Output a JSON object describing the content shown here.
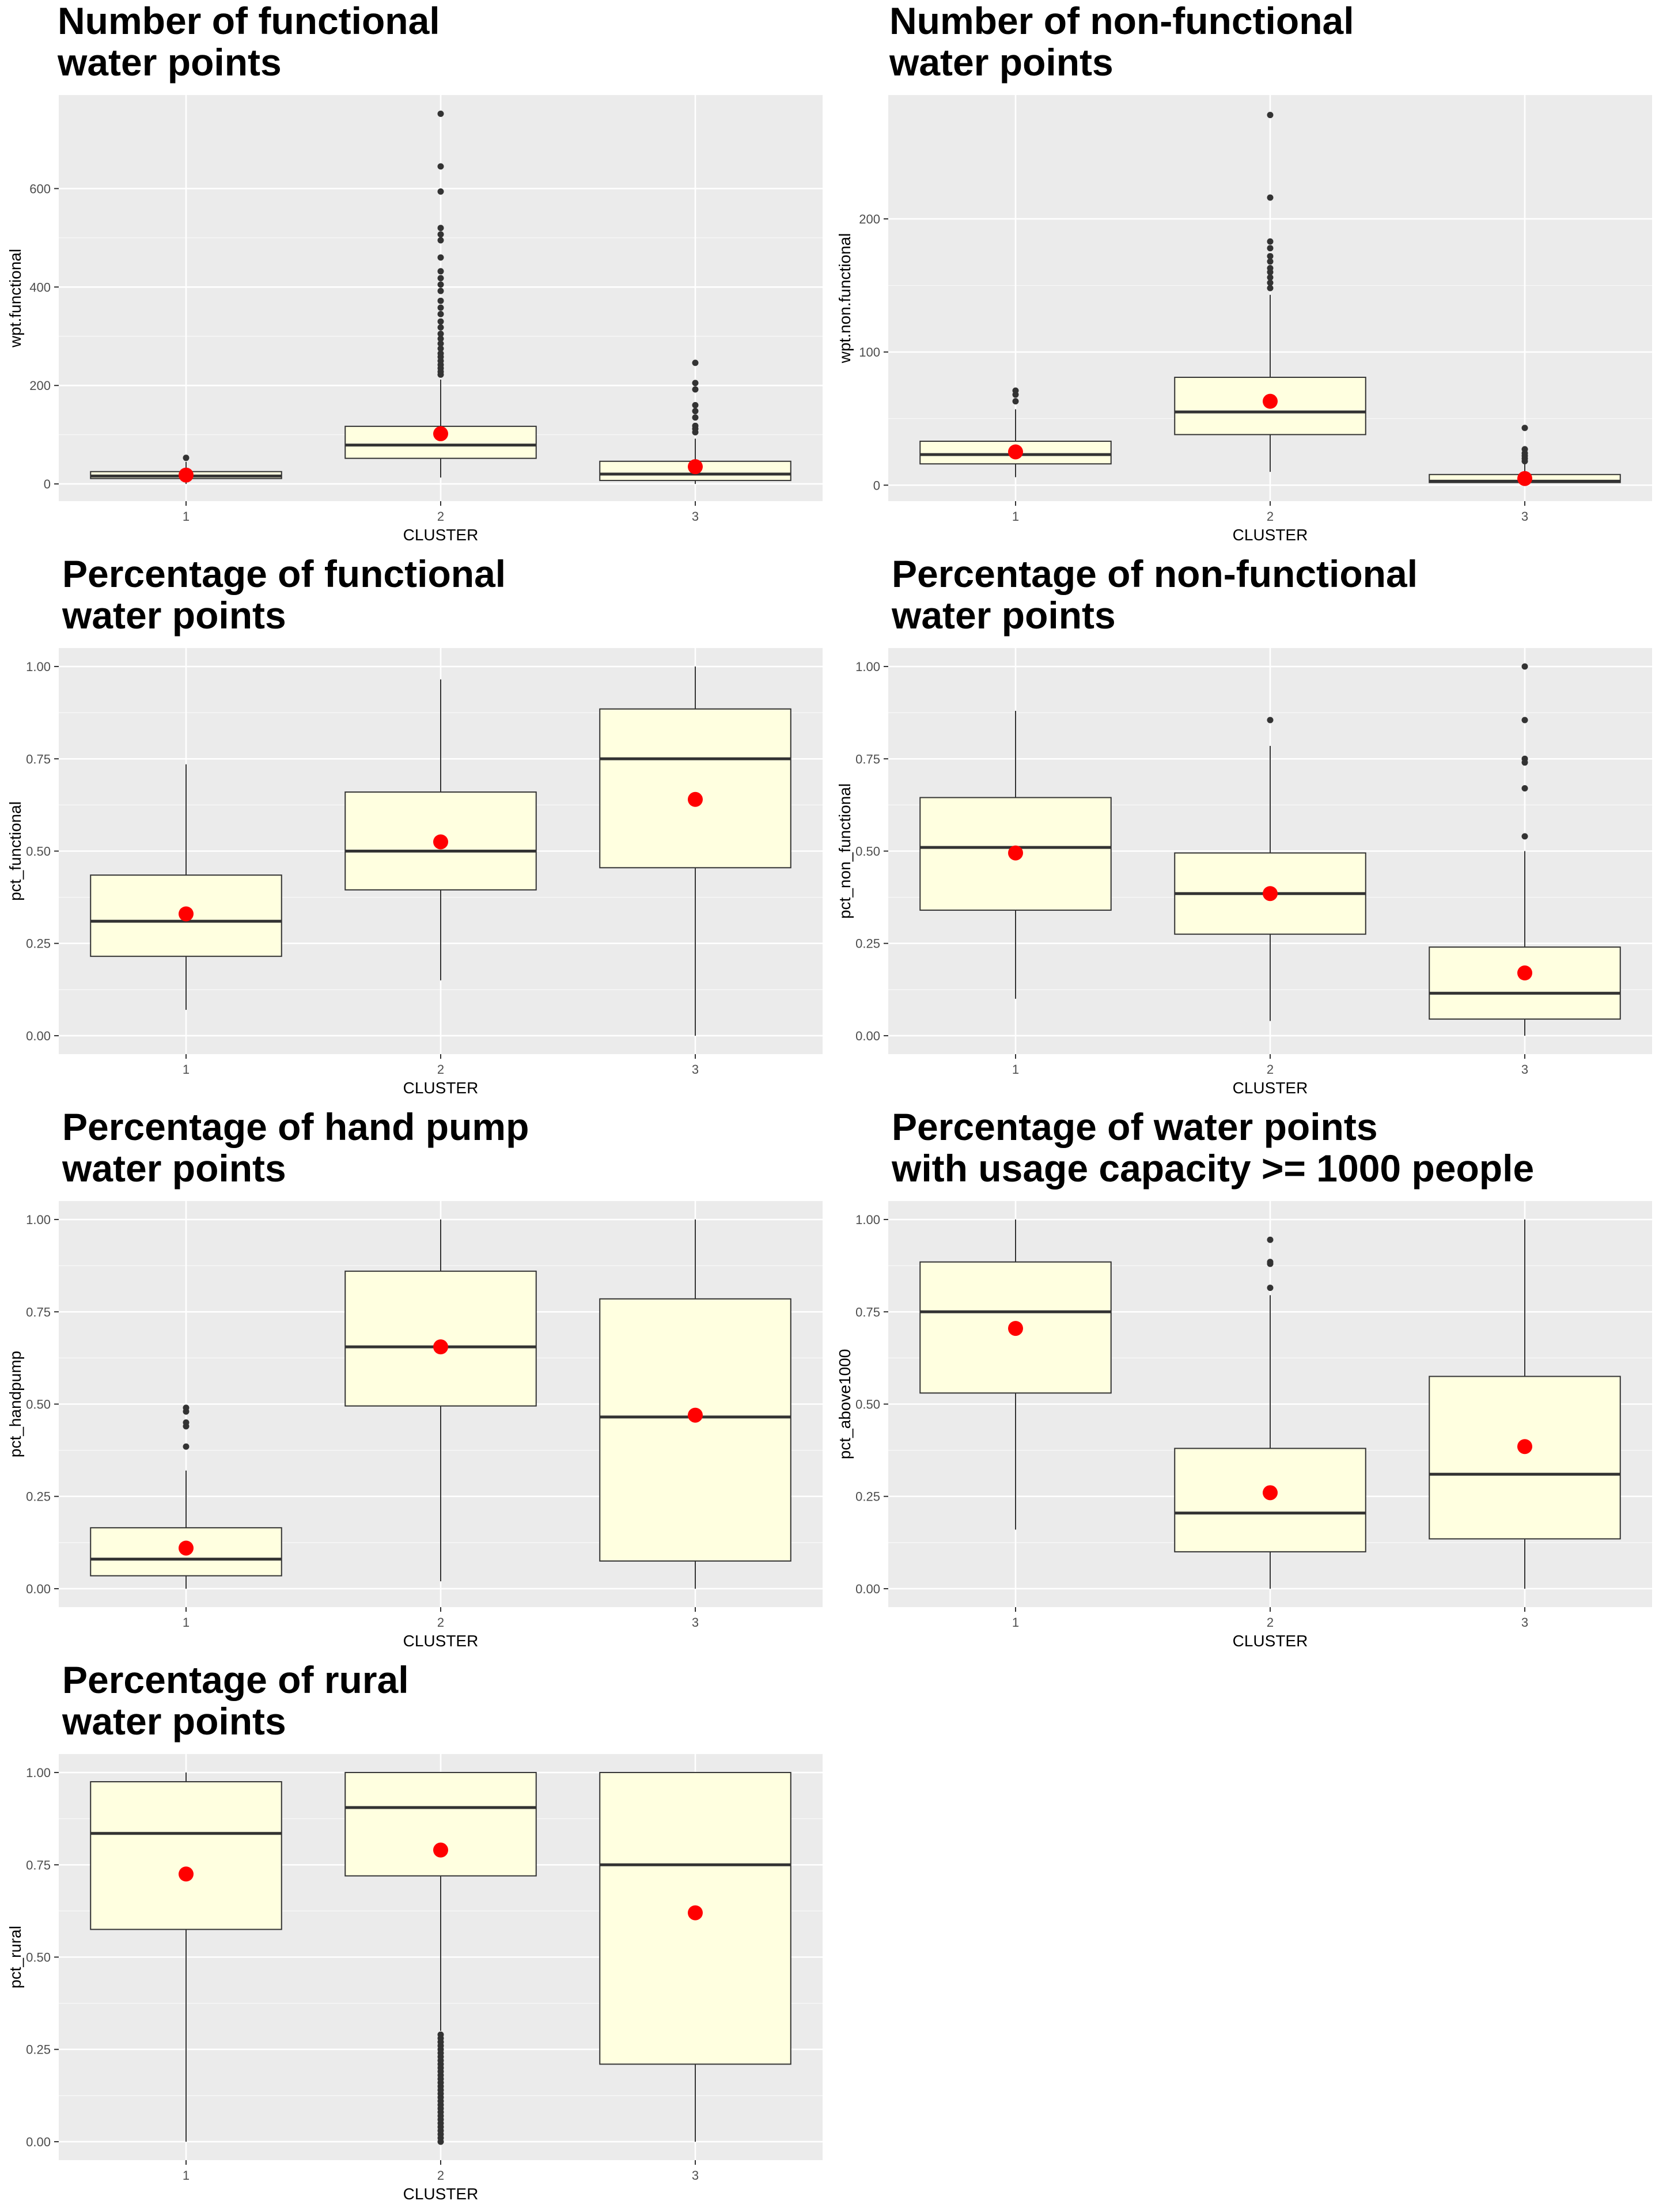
{
  "colors": {
    "panel_bg": "#ebebeb",
    "grid_major": "#ffffff",
    "box_fill": "#ffffe0",
    "box_stroke": "#333333",
    "mean_point": "#ff0000",
    "outlier": "#333333",
    "tick_text": "#4d4d4d"
  },
  "chart_data": [
    {
      "type": "boxplot",
      "title_lines": [
        "Number of functional",
        "water points"
      ],
      "xlabel": "CLUSTER",
      "ylabel": "wpt.functional",
      "categories": [
        "1",
        "2",
        "3"
      ],
      "yticks": [
        0,
        200,
        400,
        600
      ],
      "ytick_labels": [
        "0",
        "200",
        "400",
        "600"
      ],
      "ylim": [
        -35,
        790
      ],
      "boxes": [
        {
          "q1": 11,
          "median": 16,
          "q3": 25,
          "whisker_low": 0,
          "whisker_high": 45,
          "mean": 18,
          "outliers": [
            53
          ]
        },
        {
          "q1": 52,
          "median": 79,
          "q3": 117,
          "whisker_low": 13,
          "whisker_high": 212,
          "mean": 102,
          "outliers": [
            222,
            228,
            235,
            242,
            250,
            258,
            265,
            275,
            285,
            295,
            305,
            318,
            330,
            345,
            358,
            372,
            392,
            405,
            418,
            432,
            460,
            495,
            507,
            520,
            594,
            645,
            752
          ]
        },
        {
          "q1": 7,
          "median": 20,
          "q3": 46,
          "whisker_low": 0,
          "whisker_high": 92,
          "mean": 35,
          "outliers": [
            105,
            112,
            118,
            135,
            148,
            160,
            192,
            205,
            246
          ]
        }
      ]
    },
    {
      "type": "boxplot",
      "title_lines": [
        "Number of non-functional",
        "water points"
      ],
      "xlabel": "CLUSTER",
      "ylabel": "wpt.non.functional",
      "categories": [
        "1",
        "2",
        "3"
      ],
      "yticks": [
        0,
        100,
        200
      ],
      "ytick_labels": [
        "0",
        "100",
        "200"
      ],
      "ylim": [
        -12,
        293
      ],
      "boxes": [
        {
          "q1": 16,
          "median": 23,
          "q3": 33,
          "whisker_low": 6,
          "whisker_high": 57,
          "mean": 25,
          "outliers": [
            63,
            68,
            71
          ]
        },
        {
          "q1": 38,
          "median": 55,
          "q3": 81,
          "whisker_low": 10,
          "whisker_high": 143,
          "mean": 63,
          "outliers": [
            148,
            152,
            156,
            160,
            163,
            168,
            172,
            178,
            183,
            216,
            278
          ]
        },
        {
          "q1": 2,
          "median": 3,
          "q3": 8,
          "whisker_low": 0,
          "whisker_high": 16,
          "mean": 5,
          "outliers": [
            18,
            20,
            22,
            24,
            27,
            43
          ]
        }
      ]
    },
    {
      "type": "boxplot",
      "title_lines": [
        "Percentage of functional",
        "water points"
      ],
      "xlabel": "CLUSTER",
      "ylabel": "pct_functional",
      "categories": [
        "1",
        "2",
        "3"
      ],
      "yticks": [
        0,
        0.25,
        0.5,
        0.75,
        1
      ],
      "ytick_labels": [
        "0.00",
        "0.25",
        "0.50",
        "0.75",
        "1.00"
      ],
      "ylim": [
        -0.05,
        1.05
      ],
      "boxes": [
        {
          "q1": 0.215,
          "median": 0.31,
          "q3": 0.435,
          "whisker_low": 0.07,
          "whisker_high": 0.735,
          "mean": 0.33,
          "outliers": []
        },
        {
          "q1": 0.395,
          "median": 0.5,
          "q3": 0.66,
          "whisker_low": 0.15,
          "whisker_high": 0.965,
          "mean": 0.525,
          "outliers": []
        },
        {
          "q1": 0.455,
          "median": 0.75,
          "q3": 0.885,
          "whisker_low": 0,
          "whisker_high": 1,
          "mean": 0.64,
          "outliers": []
        }
      ]
    },
    {
      "type": "boxplot",
      "title_lines": [
        "Percentage of non-functional",
        "water points"
      ],
      "xlabel": "CLUSTER",
      "ylabel": "pct_non_functional",
      "categories": [
        "1",
        "2",
        "3"
      ],
      "yticks": [
        0,
        0.25,
        0.5,
        0.75,
        1
      ],
      "ytick_labels": [
        "0.00",
        "0.25",
        "0.50",
        "0.75",
        "1.00"
      ],
      "ylim": [
        -0.05,
        1.05
      ],
      "boxes": [
        {
          "q1": 0.34,
          "median": 0.51,
          "q3": 0.645,
          "whisker_low": 0.1,
          "whisker_high": 0.88,
          "mean": 0.495,
          "outliers": []
        },
        {
          "q1": 0.275,
          "median": 0.385,
          "q3": 0.495,
          "whisker_low": 0.04,
          "whisker_high": 0.785,
          "mean": 0.385,
          "outliers": [
            0.855
          ]
        },
        {
          "q1": 0.045,
          "median": 0.115,
          "q3": 0.24,
          "whisker_low": 0,
          "whisker_high": 0.5,
          "mean": 0.17,
          "outliers": [
            0.54,
            0.67,
            0.74,
            0.75,
            0.855,
            1.0
          ]
        }
      ]
    },
    {
      "type": "boxplot",
      "title_lines": [
        "Percentage of hand pump",
        "water points"
      ],
      "xlabel": "CLUSTER",
      "ylabel": "pct_handpump",
      "categories": [
        "1",
        "2",
        "3"
      ],
      "yticks": [
        0,
        0.25,
        0.5,
        0.75,
        1
      ],
      "ytick_labels": [
        "0.00",
        "0.25",
        "0.50",
        "0.75",
        "1.00"
      ],
      "ylim": [
        -0.05,
        1.05
      ],
      "boxes": [
        {
          "q1": 0.035,
          "median": 0.08,
          "q3": 0.165,
          "whisker_low": 0,
          "whisker_high": 0.32,
          "mean": 0.11,
          "outliers": [
            0.385,
            0.44,
            0.45,
            0.48,
            0.49
          ]
        },
        {
          "q1": 0.495,
          "median": 0.655,
          "q3": 0.86,
          "whisker_low": 0.02,
          "whisker_high": 1,
          "mean": 0.655,
          "outliers": []
        },
        {
          "q1": 0.075,
          "median": 0.465,
          "q3": 0.785,
          "whisker_low": 0,
          "whisker_high": 1,
          "mean": 0.47,
          "outliers": []
        }
      ]
    },
    {
      "type": "boxplot",
      "title_lines": [
        "Percentage of water points",
        "with usage capacity >= 1000 people"
      ],
      "xlabel": "CLUSTER",
      "ylabel": "pct_above1000",
      "categories": [
        "1",
        "2",
        "3"
      ],
      "yticks": [
        0,
        0.25,
        0.5,
        0.75,
        1
      ],
      "ytick_labels": [
        "0.00",
        "0.25",
        "0.50",
        "0.75",
        "1.00"
      ],
      "ylim": [
        -0.05,
        1.05
      ],
      "boxes": [
        {
          "q1": 0.53,
          "median": 0.75,
          "q3": 0.885,
          "whisker_low": 0.16,
          "whisker_high": 1,
          "mean": 0.705,
          "outliers": []
        },
        {
          "q1": 0.1,
          "median": 0.205,
          "q3": 0.38,
          "whisker_low": 0,
          "whisker_high": 0.795,
          "mean": 0.26,
          "outliers": [
            0.815,
            0.88,
            0.885,
            0.945
          ]
        },
        {
          "q1": 0.135,
          "median": 0.31,
          "q3": 0.575,
          "whisker_low": 0,
          "whisker_high": 1,
          "mean": 0.385,
          "outliers": []
        }
      ]
    },
    {
      "type": "boxplot",
      "title_lines": [
        "Percentage of rural",
        "water points"
      ],
      "xlabel": "CLUSTER",
      "ylabel": "pct_rural",
      "categories": [
        "1",
        "2",
        "3"
      ],
      "yticks": [
        0,
        0.25,
        0.5,
        0.75,
        1
      ],
      "ytick_labels": [
        "0.00",
        "0.25",
        "0.50",
        "0.75",
        "1.00"
      ],
      "ylim": [
        -0.05,
        1.05
      ],
      "boxes": [
        {
          "q1": 0.575,
          "median": 0.835,
          "q3": 0.975,
          "whisker_low": 0,
          "whisker_high": 1,
          "mean": 0.725,
          "outliers": []
        },
        {
          "q1": 0.72,
          "median": 0.905,
          "q3": 1.0,
          "whisker_low": 0.3,
          "whisker_high": 1,
          "mean": 0.79,
          "outliers": [
            0.0,
            0.01,
            0.02,
            0.03,
            0.04,
            0.05,
            0.06,
            0.07,
            0.08,
            0.09,
            0.1,
            0.11,
            0.12,
            0.13,
            0.14,
            0.15,
            0.16,
            0.17,
            0.18,
            0.19,
            0.2,
            0.21,
            0.22,
            0.23,
            0.24,
            0.25,
            0.26,
            0.27,
            0.28,
            0.29
          ]
        },
        {
          "q1": 0.21,
          "median": 0.75,
          "q3": 1.0,
          "whisker_low": 0,
          "whisker_high": 1,
          "mean": 0.62,
          "outliers": []
        }
      ]
    }
  ]
}
